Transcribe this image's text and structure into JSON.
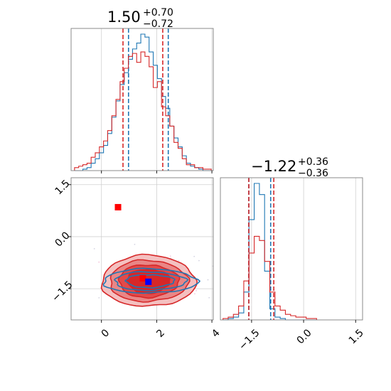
{
  "chart_data": {
    "type": "corner",
    "parameters": 2,
    "titles": [
      {
        "value": "1.50",
        "plus": "+0.70",
        "minus": "−0.72"
      },
      {
        "value": "−1.22",
        "plus": "+0.36",
        "minus": "−0.36"
      }
    ],
    "axes": {
      "p1": {
        "range": [
          -1.1,
          4.05
        ],
        "ticks": [
          0,
          2,
          4
        ],
        "tick_labels": [
          "0",
          "2",
          "4"
        ]
      },
      "p2": {
        "range": [
          -2.4,
          1.7
        ],
        "ticks": [
          -1.5,
          0.0,
          1.5
        ],
        "tick_labels": [
          "−1.5",
          "0.0",
          "1.5"
        ]
      }
    },
    "grid": true,
    "series": [
      {
        "color": "#d62728",
        "style": "filled contours",
        "quantiles": {
          "p1": [
            0.78,
            2.22
          ],
          "p2": [
            -1.58,
            -0.86
          ]
        },
        "marker": {
          "p1": 0.6,
          "p2": 0.85,
          "shape": "square"
        },
        "secondary_marker": {
          "p1": 1.5,
          "p2": -1.2,
          "shape": "square"
        },
        "contour_centers": {
          "p1": 1.7,
          "p2": -1.28
        },
        "hist_p1": {
          "x": [
            -0.9,
            -0.75,
            -0.6,
            -0.45,
            -0.3,
            -0.15,
            0.0,
            0.15,
            0.3,
            0.45,
            0.6,
            0.75,
            0.9,
            1.05,
            1.2,
            1.35,
            1.5,
            1.65,
            1.8,
            1.95,
            2.1,
            2.25,
            2.4,
            2.55,
            2.7,
            2.85,
            3.0,
            3.15,
            3.3,
            3.45,
            3.6,
            3.75,
            3.9
          ],
          "density": [
            0.02,
            0.03,
            0.04,
            0.05,
            0.09,
            0.12,
            0.16,
            0.2,
            0.27,
            0.37,
            0.48,
            0.6,
            0.69,
            0.77,
            0.79,
            0.73,
            0.8,
            0.77,
            0.7,
            0.56,
            0.6,
            0.43,
            0.37,
            0.3,
            0.19,
            0.15,
            0.08,
            0.04,
            0.04,
            0.02,
            0.02,
            0.01,
            0.01
          ]
        },
        "hist_p2": {
          "x": [
            -2.25,
            -2.1,
            -1.95,
            -1.8,
            -1.65,
            -1.5,
            -1.35,
            -1.2,
            -1.05,
            -0.9,
            -0.75,
            -0.6,
            -0.45,
            -0.3,
            -0.15,
            0.0,
            0.15,
            0.3
          ],
          "density": [
            0.01,
            0.02,
            0.04,
            0.1,
            0.28,
            0.48,
            0.6,
            0.57,
            0.42,
            0.2,
            0.1,
            0.07,
            0.04,
            0.03,
            0.02,
            0.02,
            0.01,
            0.01
          ]
        }
      },
      {
        "color": "#1f77b4",
        "style": "line contours",
        "quantiles": {
          "p1": [
            0.98,
            2.42
          ],
          "p2": [
            -1.58,
            -0.95
          ]
        },
        "marker": {
          "p1": 1.7,
          "p2": -1.3,
          "shape": "square"
        },
        "contour_centers": {
          "p1": 1.75,
          "p2": -1.28
        },
        "hist_p1": {
          "x": [
            -0.9,
            -0.75,
            -0.6,
            -0.45,
            -0.3,
            -0.15,
            0.0,
            0.15,
            0.3,
            0.45,
            0.6,
            0.75,
            0.9,
            1.05,
            1.2,
            1.35,
            1.5,
            1.65,
            1.8,
            1.95,
            2.1,
            2.25,
            2.4,
            2.55,
            2.7,
            2.85,
            3.0,
            3.15,
            3.3,
            3.45,
            3.6,
            3.75,
            3.9
          ],
          "density": [
            0.0,
            0.0,
            0.01,
            0.02,
            0.05,
            0.08,
            0.12,
            0.17,
            0.25,
            0.36,
            0.47,
            0.58,
            0.66,
            0.75,
            0.82,
            0.86,
            0.92,
            0.9,
            0.8,
            0.71,
            0.62,
            0.5,
            0.42,
            0.3,
            0.22,
            0.16,
            0.1,
            0.05,
            0.03,
            0.02,
            0.01,
            0.0,
            0.0
          ]
        },
        "hist_p2": {
          "x": [
            -2.25,
            -2.1,
            -1.95,
            -1.8,
            -1.65,
            -1.5,
            -1.35,
            -1.2,
            -1.05,
            -0.9,
            -0.75,
            -0.6,
            -0.45,
            -0.3,
            -0.15,
            0.0,
            0.15,
            0.3
          ],
          "density": [
            0.0,
            0.01,
            0.02,
            0.05,
            0.2,
            0.72,
            0.98,
            0.9,
            0.35,
            0.08,
            0.02,
            0.01,
            0.0,
            0.0,
            0.0,
            0.0,
            0.0,
            0.0
          ]
        }
      }
    ]
  }
}
